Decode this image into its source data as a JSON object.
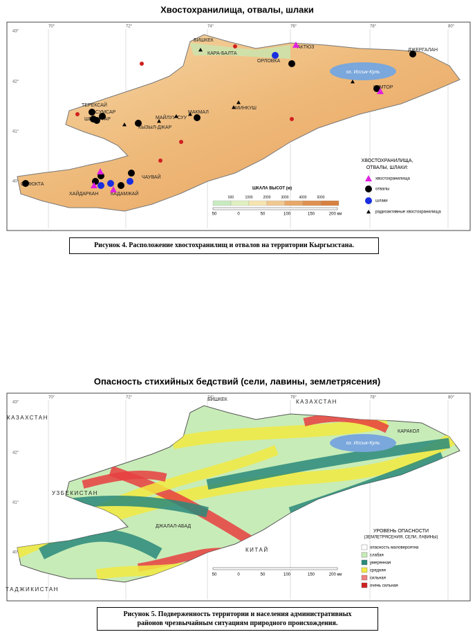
{
  "figure1": {
    "title": "Хвостохранилища, отвалы, шлаки",
    "coords": [
      "43°",
      "42°",
      "41°",
      "40°",
      "70°",
      "72°",
      "74°",
      "76°",
      "78°",
      "80°"
    ],
    "lake": "оз. Иссык-Куль",
    "places": [
      "БИШКЕК",
      "КАРА-БАЛТА",
      "АКТЮЗ",
      "ОРЛОВКА",
      "ДЖЕРГАЛАН",
      "КУМТОР",
      "ТЕРЕКСАЙ",
      "СУМСАР",
      "ШЕКАФТАР",
      "МАЙЛУУ-СУУ",
      "КЫЗЫЛ-ДЖАР",
      "МАКМАЛ",
      "МИНКУШ",
      "СУЛЮКТА",
      "ХАЙДАРКАН",
      "КАДАМЖАЙ",
      "ЧАУВАЙ"
    ],
    "legend_title": [
      "ХВОСТОХРАНИЛИЩА,",
      "ОТВАЛЫ, ШЛАКИ:"
    ],
    "legend": [
      "хвостохранилища",
      "отвалы",
      "шлаки",
      "радиоактивные хвостохранилища"
    ],
    "height_scale_title": "ШКАЛА ВЫСОТ (м)",
    "height_ticks": [
      "500",
      "1000",
      "2000",
      "3000",
      "4000",
      "5000"
    ],
    "distance_ticks": [
      "50",
      "0",
      "50",
      "100",
      "150",
      "200 км"
    ],
    "caption": "Рисунок 4. Расположение хвостохранилищ и отвалов на территории  Кыргызстана."
  },
  "figure2": {
    "title": "Опасность стихийных бедствий (сели, лавины, землетрясения)",
    "coords": [
      "43°",
      "42°",
      "41°",
      "40°",
      "70°",
      "72°",
      "74°",
      "76°",
      "78°",
      "80°"
    ],
    "lake": "оз. Иссык-Куль",
    "places": [
      "КАЗАХСТАН",
      "КАЗАХСТАН",
      "УЗБЕКИСТАН",
      "ТАДЖИКИСТАН",
      "КИТАЙ",
      "БИШКЕК",
      "КАРАКОЛ",
      "ДЖАЛАЛ-АБАД"
    ],
    "legend_title": [
      "УРОВЕНЬ ОПАСНОСТИ",
      "(ЗЕМЛЕТРЯСЕНИЯ, СЕЛИ, ЛАВИНЫ)"
    ],
    "legend": [
      "опасность маловероятна",
      "слабая",
      "умеренная",
      "средняя",
      "сильная",
      "очень сильная"
    ],
    "distance_ticks": [
      "50",
      "0",
      "50",
      "100",
      "150",
      "200 км"
    ],
    "caption": [
      "Рисунок 5. Подверженность территории и населения административных",
      "районов чрезвычайным ситуациям природного происхождения."
    ]
  }
}
